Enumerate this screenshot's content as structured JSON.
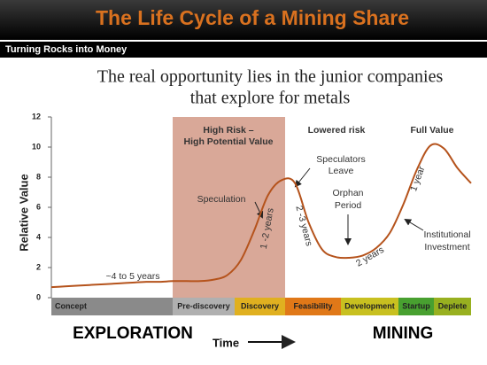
{
  "header": {
    "title": "The Life Cycle of a Mining Share",
    "subtitle": "Turning Rocks into Money"
  },
  "heading": [
    "The real opportunity lies in the junior companies",
    "that explore for metals"
  ],
  "chart_data": {
    "type": "line",
    "y_label": "Relative Value",
    "x_label": "Time",
    "categories": [
      null,
      null,
      null,
      null,
      null,
      null,
      null,
      null,
      null,
      null,
      null,
      null,
      null,
      null,
      null,
      null,
      null,
      null,
      null,
      null,
      null,
      null,
      null,
      null,
      null,
      null,
      null,
      null,
      null,
      null,
      null,
      null
    ],
    "values": [
      0.7,
      0.75,
      0.8,
      0.85,
      0.9,
      0.95,
      1.0,
      1.05,
      1.05,
      1.1,
      1.1,
      1.1,
      1.2,
      1.5,
      2.5,
      4.5,
      6.8,
      7.8,
      7.6,
      5.0,
      3.2,
      2.7,
      2.65,
      2.8,
      3.3,
      4.3,
      6.2,
      8.5,
      10.1,
      9.9,
      8.6,
      7.6
    ],
    "color": "#b5531c",
    "ylim": [
      0,
      12
    ],
    "yticks": [
      0,
      2,
      4,
      6,
      8,
      10,
      12
    ],
    "annotations": [
      "High Risk –",
      "High Potential Value",
      "Lowered risk",
      "Full Value",
      "Speculation",
      "Speculators",
      "Leave",
      "Orphan",
      "Period",
      "Institutional",
      "Investment",
      "~4 to 5 years",
      "1 -2 years",
      "2 -3 years",
      "2 years",
      "1 year"
    ],
    "stages": [
      {
        "name": "Concept",
        "color": "#8a8a8a"
      },
      {
        "name": "Pre-discovery",
        "color": "#b0b0b0"
      },
      {
        "name": "Discovery",
        "color": "#e0b020"
      },
      {
        "name": "Feasibility",
        "color": "#e07818"
      },
      {
        "name": "Development",
        "color": "#c8c020"
      },
      {
        "name": "Startup",
        "color": "#48a030"
      },
      {
        "name": "Deplete",
        "color": "#98b020"
      }
    ],
    "phases": [
      "EXPLORATION",
      "MINING"
    ]
  }
}
